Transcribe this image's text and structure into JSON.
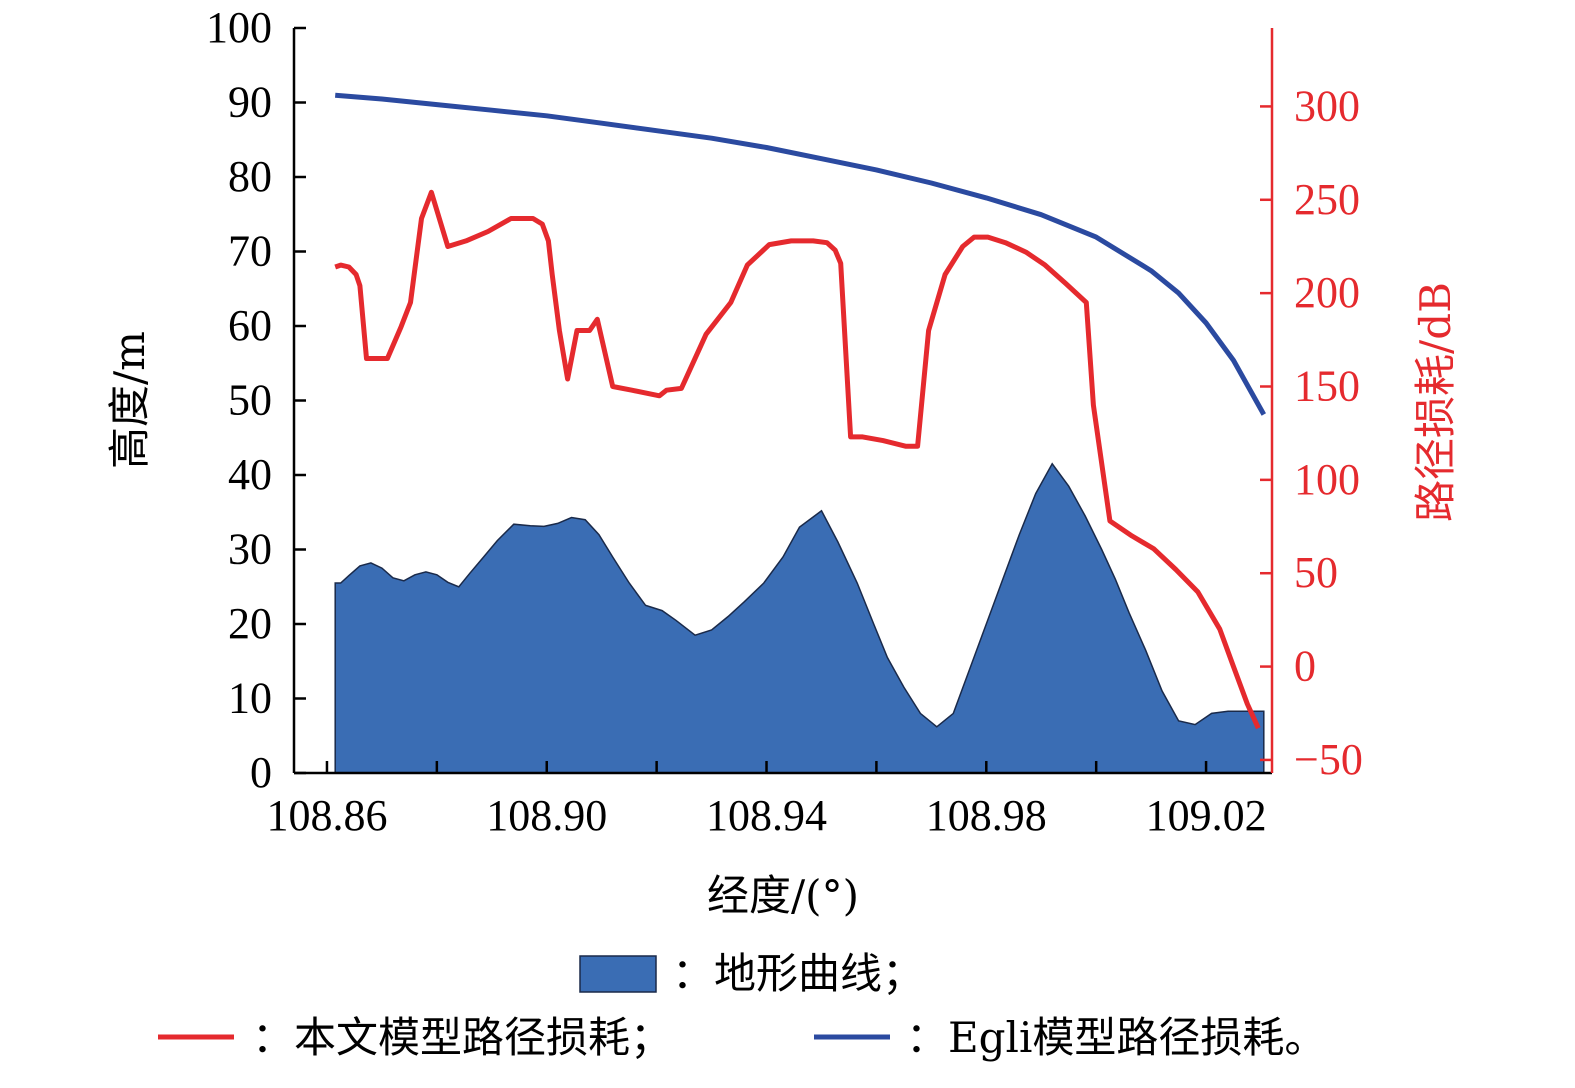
{
  "chart_data": {
    "type": "area",
    "xlabel": "经度/(°)",
    "ylabel_left": "高度/m",
    "ylabel_right": "路径损耗/dB",
    "x_ticks": [
      "108.86",
      "108.90",
      "108.94",
      "108.98",
      "109.02"
    ],
    "xlim": [
      108.854,
      109.032
    ],
    "y_left_ticks": [
      "0",
      "10",
      "20",
      "30",
      "40",
      "50",
      "60",
      "70",
      "80",
      "90",
      "100"
    ],
    "y_left_lim": [
      0,
      100
    ],
    "y_right_ticks": [
      "−50",
      "0",
      "50",
      "100",
      "150",
      "200",
      "250",
      "300"
    ],
    "y_right_lim": [
      -57,
      342
    ],
    "grid": false,
    "legend_position": "bottom",
    "colors": {
      "terrain": "#3a6db4",
      "model": "#e52a2e",
      "egli": "#2b4aa0",
      "right_axis": "#e52a2e"
    },
    "series": [
      {
        "name": "地形曲线",
        "axis": "left",
        "kind": "area",
        "x": [
          108.8615,
          108.8625,
          108.864,
          108.866,
          108.868,
          108.87,
          108.872,
          108.874,
          108.876,
          108.878,
          108.88,
          108.882,
          108.884,
          108.886,
          108.8885,
          108.891,
          108.894,
          108.897,
          108.8995,
          108.902,
          108.9045,
          108.907,
          108.9095,
          108.912,
          108.915,
          108.918,
          108.921,
          108.9235,
          108.927,
          108.93,
          108.933,
          108.936,
          108.9395,
          108.943,
          108.946,
          108.95,
          108.953,
          108.9565,
          108.9595,
          108.962,
          108.965,
          108.968,
          108.971,
          108.974,
          108.977,
          108.98,
          108.983,
          108.986,
          108.989,
          108.992,
          108.995,
          108.998,
          109.001,
          109.0035,
          109.006,
          109.009,
          109.012,
          109.015,
          109.018,
          109.021,
          109.024,
          109.026,
          109.028,
          109.0305
        ],
        "y": [
          25.5,
          25.5,
          26.5,
          27.8,
          28.2,
          27.5,
          26.2,
          25.8,
          26.6,
          27.0,
          26.6,
          25.6,
          25.0,
          26.8,
          29.0,
          31.2,
          33.4,
          33.2,
          33.1,
          33.5,
          34.3,
          34.0,
          32.0,
          29.0,
          25.5,
          22.5,
          21.8,
          20.5,
          18.5,
          19.2,
          21.0,
          23.0,
          25.5,
          29.0,
          33.0,
          35.2,
          31.0,
          25.5,
          20.0,
          15.5,
          11.5,
          8.0,
          6.2,
          8.0,
          14.0,
          20.0,
          26.0,
          32.0,
          37.5,
          41.5,
          38.5,
          34.5,
          30.0,
          26.0,
          21.5,
          16.5,
          11.0,
          7.0,
          6.5,
          8.0,
          8.3,
          8.3,
          8.3,
          8.3
        ]
      },
      {
        "name": "本文模型路径损耗",
        "axis": "right",
        "kind": "line",
        "x": [
          108.8615,
          108.8625,
          108.864,
          108.8653,
          108.866,
          108.8672,
          108.8692,
          108.871,
          108.8735,
          108.8752,
          108.8772,
          108.879,
          108.882,
          108.8853,
          108.8893,
          108.8935,
          108.8975,
          108.8992,
          108.9003,
          108.901,
          108.9023,
          108.9038,
          108.9055,
          108.9078,
          108.9092,
          108.912,
          108.9155,
          108.9205,
          108.9218,
          108.9245,
          108.929,
          108.9335,
          108.9365,
          108.9405,
          108.9445,
          108.9485,
          108.951,
          108.9525,
          108.9535,
          108.9553,
          108.9575,
          108.9612,
          108.9653,
          108.9675,
          108.9695,
          108.9725,
          108.9757,
          108.9778,
          108.9803,
          108.9835,
          108.9872,
          108.9907,
          108.9945,
          108.9982,
          108.9995,
          109.0025,
          109.0065,
          109.0105,
          109.0145,
          109.0185,
          109.0225,
          109.025,
          109.0275,
          109.0295
        ],
        "y": [
          214,
          215,
          214,
          210,
          204,
          165,
          165,
          165,
          182,
          195,
          240,
          254,
          225,
          228,
          233,
          240,
          240,
          237,
          228,
          210,
          180,
          154,
          180,
          180,
          186,
          150,
          148,
          145,
          148,
          149,
          178,
          195,
          215,
          226,
          228,
          228,
          227,
          223,
          216,
          123,
          123,
          121,
          118,
          118,
          180,
          210,
          225,
          230,
          230,
          227,
          222,
          215,
          205,
          195,
          140,
          78,
          70,
          63,
          52,
          40,
          20,
          0,
          -20,
          -33
        ]
      },
      {
        "name": "Egli模型路径损耗",
        "axis": "right",
        "kind": "line",
        "x": [
          108.8615,
          108.87,
          108.88,
          108.89,
          108.9,
          108.91,
          108.92,
          108.93,
          108.94,
          108.95,
          108.96,
          108.97,
          108.98,
          108.99,
          109.0,
          109.01,
          109.015,
          109.02,
          109.025,
          109.0305
        ],
        "y": [
          306,
          304,
          301,
          298,
          295,
          291,
          287,
          283,
          278,
          272,
          266,
          259,
          251,
          242,
          230,
          212,
          200,
          184,
          164,
          135
        ]
      }
    ]
  },
  "legend": {
    "terrain_label": "：地形曲线；",
    "model_label": "：本文模型路径损耗；",
    "egli_label": "：Egli模型路径损耗。"
  }
}
